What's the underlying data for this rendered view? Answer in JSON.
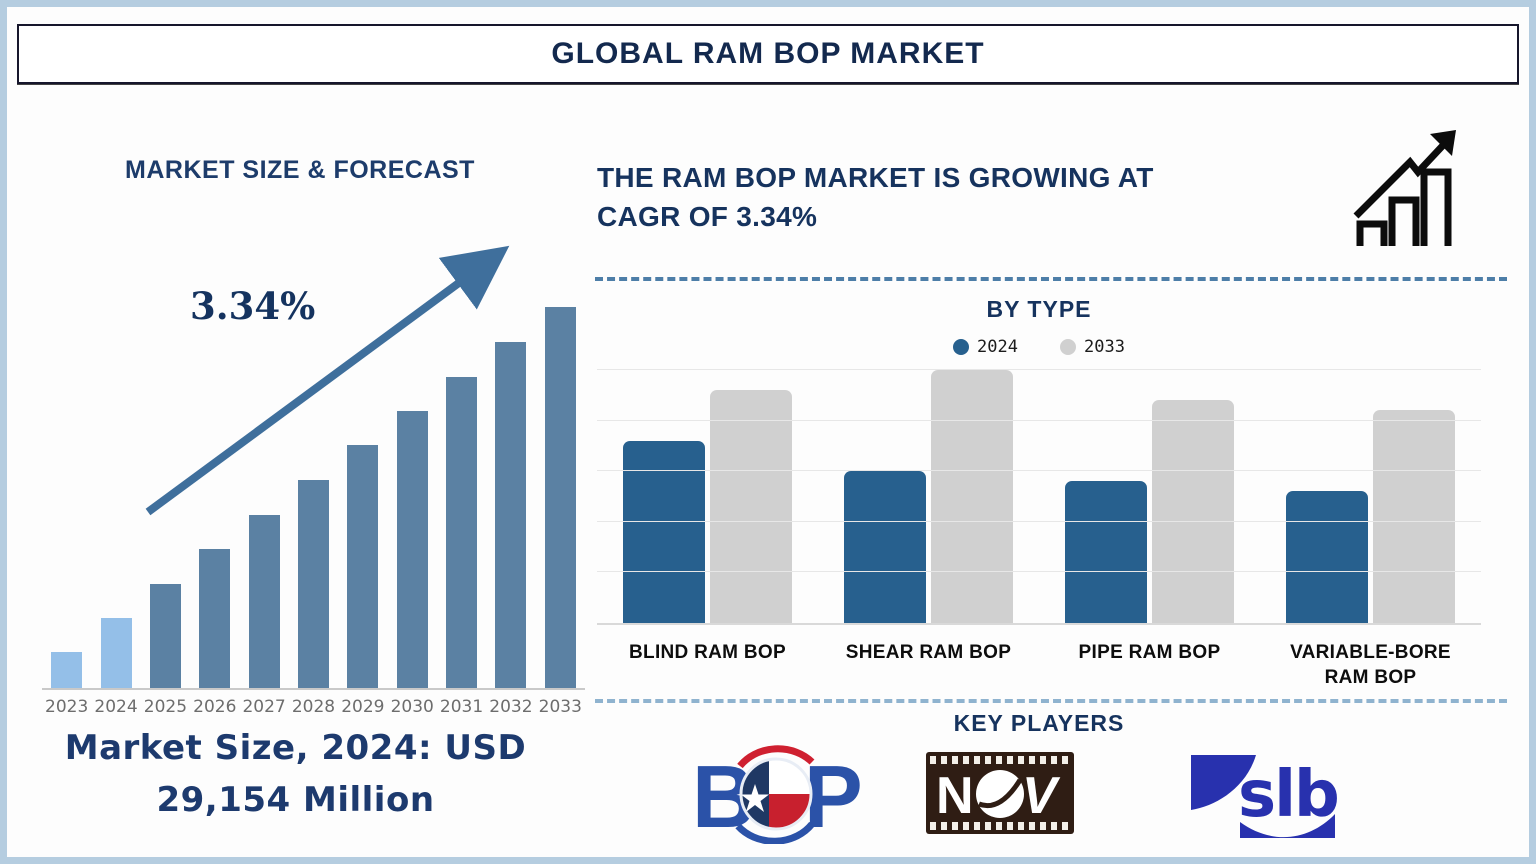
{
  "title": "GLOBAL RAM BOP MARKET",
  "left_panel": {
    "heading": "MARKET SIZE & FORECAST",
    "growth_label": "3.34%",
    "caption_line1": "Market Size, 2024: USD",
    "caption_line2": "29,154 Million"
  },
  "right_panel": {
    "headline_line1": "THE RAM BOP MARKET IS GROWING AT",
    "headline_line2": "CAGR OF 3.34%",
    "by_type_title": "BY TYPE",
    "key_players_title": "KEY PLAYERS",
    "logos": {
      "bop": "BOP",
      "nov": "NOV",
      "slb": "slb"
    }
  },
  "colors": {
    "navy_text": "#16335e",
    "arrow_blue": "#3f6f9c",
    "light_bar": "#94bfe8",
    "steel_bar": "#5b81a3",
    "frame_blue": "#b5cde0",
    "dashed_line": "#4d7ea8",
    "year_label_gray": "#6d6d6d",
    "bop_blue": "#2b52a8",
    "nov_brown": "#2f1d14",
    "slb_blue": "#2831ae"
  },
  "chart_data": [
    {
      "type": "bar",
      "title": "MARKET SIZE & FORECAST",
      "categories": [
        "2023",
        "2024",
        "2025",
        "2026",
        "2027",
        "2028",
        "2029",
        "2030",
        "2031",
        "2032",
        "2033"
      ],
      "values": [
        36,
        70,
        104,
        139,
        173,
        208,
        243,
        277,
        311,
        346,
        381
      ],
      "unit": "relative bar height (axis unlabeled)",
      "ylim": [
        0,
        390
      ],
      "grid": false,
      "bar_colors": [
        "#94bfe8",
        "#94bfe8",
        "#5b81a3",
        "#5b81a3",
        "#5b81a3",
        "#5b81a3",
        "#5b81a3",
        "#5b81a3",
        "#5b81a3",
        "#5b81a3",
        "#5b81a3"
      ],
      "annotations": [
        "3.34% growth arrow",
        "Market Size, 2024: USD 29,154 Million"
      ]
    },
    {
      "type": "bar",
      "title": "BY TYPE",
      "categories": [
        "BLIND RAM BOP",
        "SHEAR RAM BOP",
        "PIPE RAM BOP",
        "VARIABLE-BORE RAM BOP"
      ],
      "series": [
        {
          "name": "2024",
          "color": "#27608e",
          "values": [
            3.6,
            3.0,
            2.8,
            2.6
          ]
        },
        {
          "name": "2033",
          "color": "#d0d0d0",
          "values": [
            4.6,
            5.0,
            4.4,
            4.2
          ]
        }
      ],
      "unit": "relative (axis unlabeled)",
      "ylim": [
        0,
        5
      ],
      "grid": true,
      "legend_position": "top"
    }
  ]
}
